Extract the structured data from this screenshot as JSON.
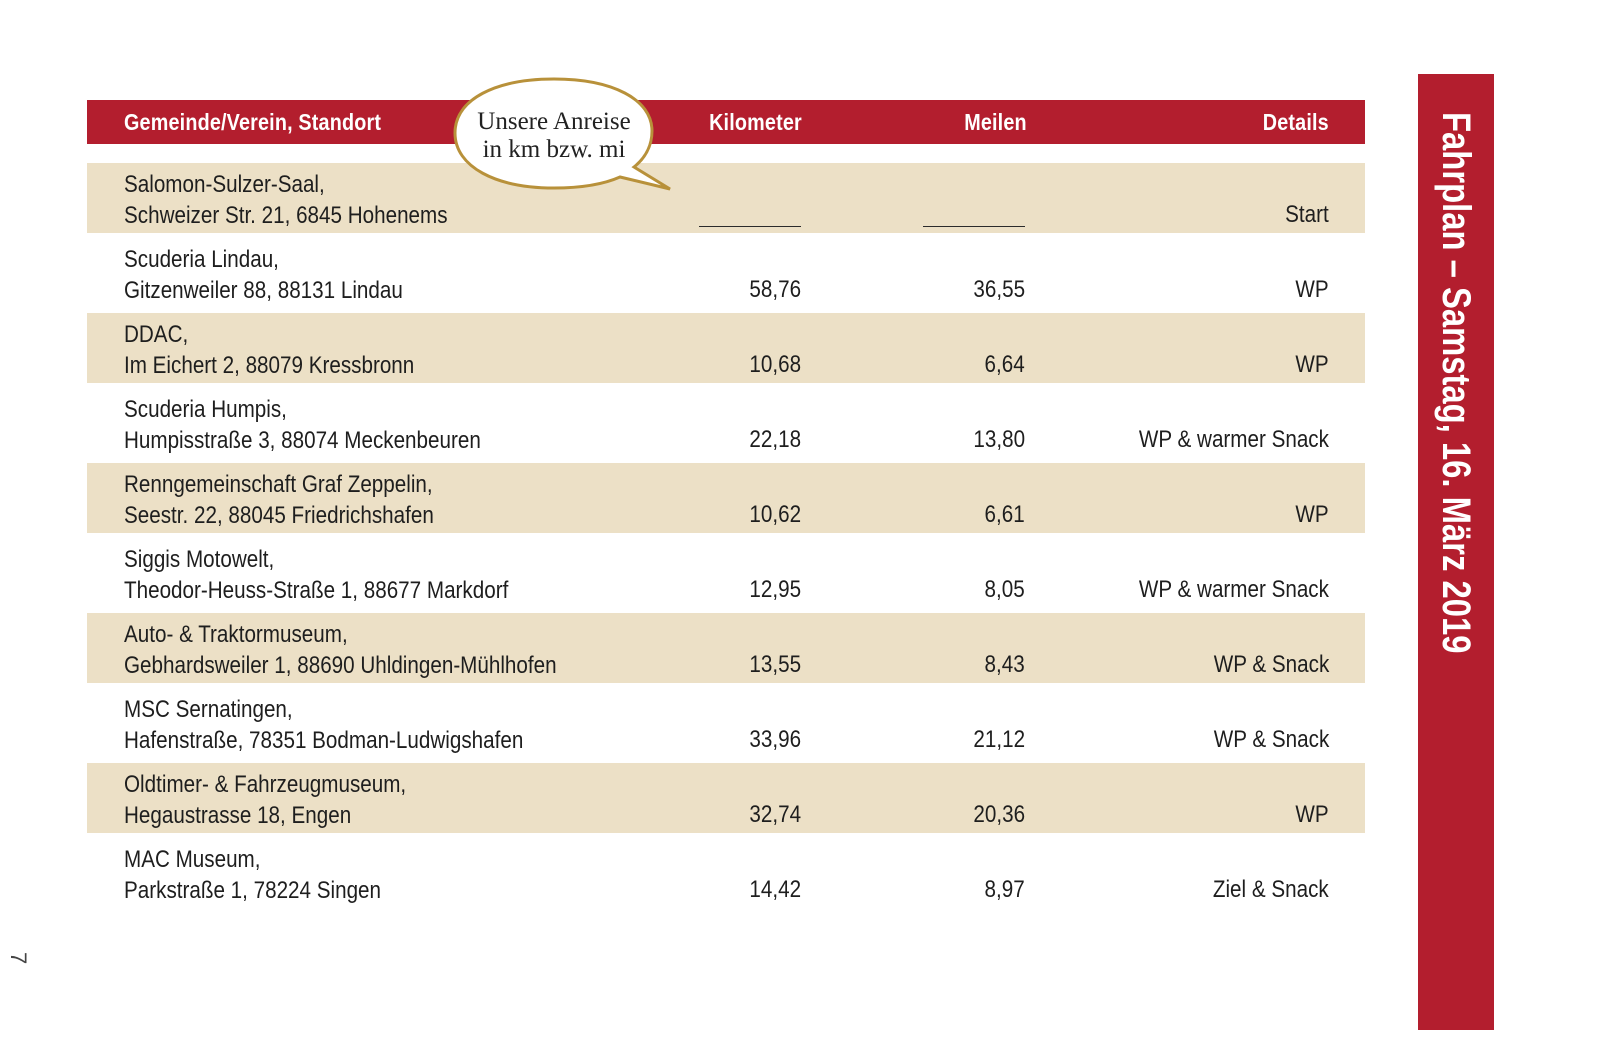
{
  "table": {
    "headers": {
      "gemeinde": "Gemeinde/Verein, Standort",
      "kilometer": "Kilometer",
      "meilen": "Meilen",
      "details": "Details"
    },
    "rows": [
      {
        "name_line1": "Salomon-Sulzer-Saal,",
        "name_line2": "Schweizer Str. 21, 6845 Hohenems",
        "km": "",
        "mi": "",
        "details": "Start"
      },
      {
        "name_line1": "Scuderia Lindau,",
        "name_line2": "Gitzenweiler 88, 88131 Lindau",
        "km": "58,76",
        "mi": "36,55",
        "details": "WP"
      },
      {
        "name_line1": "DDAC,",
        "name_line2": "Im Eichert 2, 88079 Kressbronn",
        "km": "10,68",
        "mi": "6,64",
        "details": "WP"
      },
      {
        "name_line1": "Scuderia Humpis,",
        "name_line2": "Humpisstraße 3, 88074 Meckenbeuren",
        "km": "22,18",
        "mi": "13,80",
        "details": "WP & warmer Snack"
      },
      {
        "name_line1": "Renngemeinschaft Graf Zeppelin,",
        "name_line2": "Seestr. 22, 88045 Friedrichshafen",
        "km": "10,62",
        "mi": "6,61",
        "details": "WP"
      },
      {
        "name_line1": "Siggis Motowelt,",
        "name_line2": "Theodor-Heuss-Straße 1, 88677 Markdorf",
        "km": "12,95",
        "mi": "8,05",
        "details": "WP & warmer Snack"
      },
      {
        "name_line1": "Auto- & Traktormuseum,",
        "name_line2": "Gebhardsweiler 1, 88690 Uhldingen-Mühlhofen",
        "km": "13,55",
        "mi": "8,43",
        "details": "WP & Snack"
      },
      {
        "name_line1": "MSC Sernatingen,",
        "name_line2": "Hafenstraße, 78351 Bodman-Ludwigshafen",
        "km": "33,96",
        "mi": "21,12",
        "details": "WP & Snack"
      },
      {
        "name_line1": "Oldtimer- & Fahrzeugmuseum,",
        "name_line2": "Hegaustrasse 18, Engen",
        "km": "32,74",
        "mi": "20,36",
        "details": "WP"
      },
      {
        "name_line1": "MAC Museum,",
        "name_line2": "Parkstraße 1, 78224 Singen",
        "km": "14,42",
        "mi": "8,97",
        "details": "Ziel & Snack"
      }
    ]
  },
  "bubble": {
    "line1": "Unsere Anreise",
    "line2": "in km bzw. mi"
  },
  "sidebar": {
    "title": "Fahrplan – Samstag, 16. März 2019"
  },
  "page_number": "7",
  "colors": {
    "accent_red": "#b31e2e",
    "row_shade": "#ece0c6",
    "bubble_border": "#b8913a"
  }
}
